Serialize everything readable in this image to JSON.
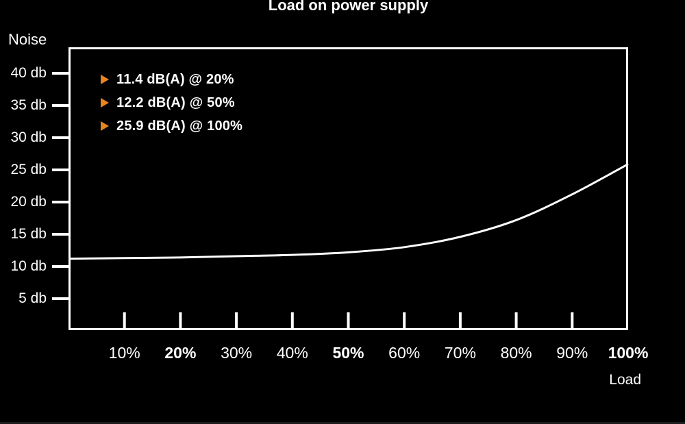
{
  "title": "Load on power supply",
  "y_axis": {
    "label": "Noise",
    "ticks": [
      {
        "label": "40 db",
        "value": 40
      },
      {
        "label": "35 db",
        "value": 35
      },
      {
        "label": "30 db",
        "value": 30
      },
      {
        "label": "25 db",
        "value": 25
      },
      {
        "label": "20 db",
        "value": 20
      },
      {
        "label": "15 db",
        "value": 15
      },
      {
        "label": "10 db",
        "value": 10
      },
      {
        "label": "5 db",
        "value": 5
      }
    ]
  },
  "x_axis": {
    "label": "Load",
    "ticks": [
      {
        "label": "10%",
        "value": 10,
        "bold": false
      },
      {
        "label": "20%",
        "value": 20,
        "bold": true
      },
      {
        "label": "30%",
        "value": 30,
        "bold": false
      },
      {
        "label": "40%",
        "value": 40,
        "bold": false
      },
      {
        "label": "50%",
        "value": 50,
        "bold": true
      },
      {
        "label": "60%",
        "value": 60,
        "bold": false
      },
      {
        "label": "70%",
        "value": 70,
        "bold": false
      },
      {
        "label": "80%",
        "value": 80,
        "bold": false
      },
      {
        "label": "90%",
        "value": 90,
        "bold": false
      },
      {
        "label": "100%",
        "value": 100,
        "bold": true
      }
    ]
  },
  "legend": {
    "items": [
      {
        "marker": "right-triangle",
        "text": "11.4 dB(A) @ 20%"
      },
      {
        "marker": "right-triangle",
        "text": "12.2 dB(A) @ 50%"
      },
      {
        "marker": "right-triangle",
        "text": "25.9 dB(A) @ 100%"
      }
    ]
  },
  "colors": {
    "background": "#000000",
    "line": "#ffffff",
    "text": "#ffffff",
    "marker_orange": "#e8831f",
    "bottom_strip": "#1d1d20"
  },
  "chart_data": {
    "type": "line",
    "title": "Load on power supply",
    "xlabel": "Load",
    "ylabel": "Noise",
    "x_unit": "% load",
    "y_unit": "db",
    "x": [
      0,
      10,
      20,
      30,
      40,
      50,
      60,
      70,
      80,
      90,
      100
    ],
    "y": [
      11.2,
      11.3,
      11.4,
      11.6,
      11.8,
      12.2,
      13.0,
      14.6,
      17.2,
      21.2,
      25.9
    ],
    "xlim": [
      0,
      100
    ],
    "ylim": [
      0,
      44
    ],
    "y_ticks": [
      40,
      35,
      30,
      25,
      20,
      15,
      10,
      5
    ],
    "x_ticks_with_marks": [
      10,
      20,
      30,
      40,
      50,
      60,
      70,
      80,
      90
    ],
    "grid": false,
    "legend_position": "top-left-inside",
    "line_color": "#ffffff",
    "annotated_points": [
      {
        "x": 20,
        "y": 11.4,
        "label": "11.4 dB(A) @ 20%"
      },
      {
        "x": 50,
        "y": 12.2,
        "label": "12.2 dB(A) @ 50%"
      },
      {
        "x": 100,
        "y": 25.9,
        "label": "25.9 dB(A) @ 100%"
      }
    ]
  }
}
